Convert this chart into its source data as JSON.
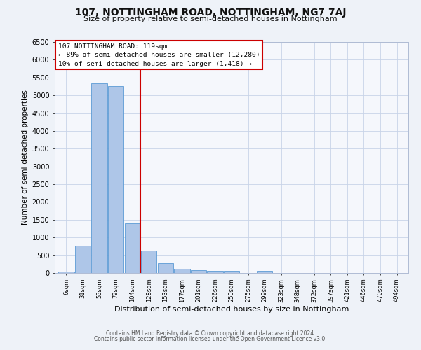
{
  "title": "107, NOTTINGHAM ROAD, NOTTINGHAM, NG7 7AJ",
  "subtitle": "Size of property relative to semi-detached houses in Nottingham",
  "xlabel": "Distribution of semi-detached houses by size in Nottingham",
  "ylabel": "Number of semi-detached properties",
  "bar_labels": [
    "6sqm",
    "31sqm",
    "55sqm",
    "79sqm",
    "104sqm",
    "128sqm",
    "153sqm",
    "177sqm",
    "201sqm",
    "226sqm",
    "250sqm",
    "275sqm",
    "299sqm",
    "323sqm",
    "348sqm",
    "372sqm",
    "397sqm",
    "421sqm",
    "446sqm",
    "470sqm",
    "494sqm"
  ],
  "bar_values": [
    30,
    770,
    5330,
    5250,
    1400,
    630,
    280,
    120,
    80,
    50,
    50,
    0,
    55,
    0,
    0,
    0,
    0,
    0,
    0,
    0,
    0
  ],
  "bar_color": "#aec6e8",
  "bar_edge_color": "#5b9bd5",
  "vline_between": [
    4,
    5
  ],
  "vline_color": "#cc0000",
  "ylim": [
    0,
    6500
  ],
  "yticks": [
    0,
    500,
    1000,
    1500,
    2000,
    2500,
    3000,
    3500,
    4000,
    4500,
    5000,
    5500,
    6000,
    6500
  ],
  "annotation_title": "107 NOTTINGHAM ROAD: 119sqm",
  "annotation_line1": "← 89% of semi-detached houses are smaller (12,280)",
  "annotation_line2": "10% of semi-detached houses are larger (1,418) →",
  "annotation_box_color": "#cc0000",
  "footer_line1": "Contains HM Land Registry data © Crown copyright and database right 2024.",
  "footer_line2": "Contains public sector information licensed under the Open Government Licence v3.0.",
  "bg_color": "#eef2f8",
  "plot_bg_color": "#f5f7fc",
  "grid_color": "#c8d4e8",
  "title_fontsize": 10,
  "subtitle_fontsize": 8,
  "ylabel_fontsize": 7.5,
  "xlabel_fontsize": 8
}
